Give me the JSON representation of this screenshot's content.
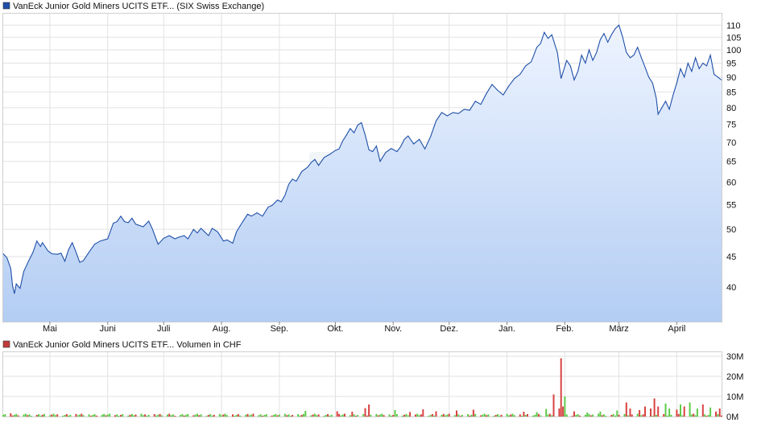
{
  "chart_data": [
    {
      "type": "area",
      "legend": {
        "label": "VanEck Junior Gold Miners UCITS ETF... (SIX Swiss Exchange)",
        "color": "#1f4fa8"
      },
      "line_color": "#1f4fa8",
      "fill_top": "#eef4ff",
      "fill_bottom": "#b3cdf3",
      "y_scale": "log",
      "ylim": [
        35,
        115
      ],
      "ytick_labels": [
        "40",
        "45",
        "50",
        "55",
        "60",
        "65",
        "70",
        "75",
        "80",
        "85",
        "90",
        "95",
        "100",
        "105",
        "110"
      ],
      "xlim": [
        "2023-04-06",
        "2024-04-25"
      ],
      "months": [
        {
          "date": "2023-05-01",
          "label": "Mai"
        },
        {
          "date": "2023-06-01",
          "label": "Juni"
        },
        {
          "date": "2023-07-01",
          "label": "Juli"
        },
        {
          "date": "2023-08-01",
          "label": "Aug."
        },
        {
          "date": "2023-09-01",
          "label": "Sep."
        },
        {
          "date": "2023-10-01",
          "label": "Okt."
        },
        {
          "date": "2023-11-01",
          "label": "Nov."
        },
        {
          "date": "2023-12-01",
          "label": "Dez."
        },
        {
          "date": "2024-01-01",
          "label": "Jan."
        },
        {
          "date": "2024-02-01",
          "label": "Feb."
        },
        {
          "date": "2024-03-01",
          "label": "März"
        },
        {
          "date": "2024-04-01",
          "label": "April"
        }
      ],
      "series": [
        {
          "points": [
            [
              "2023-04-06",
              45.5
            ],
            [
              "2023-04-08",
              44.8
            ],
            [
              "2023-04-10",
              43.0
            ],
            [
              "2023-04-11",
              40.2
            ],
            [
              "2023-04-12",
              39.0
            ],
            [
              "2023-04-13",
              40.5
            ],
            [
              "2023-04-15",
              39.8
            ],
            [
              "2023-04-17",
              42.5
            ],
            [
              "2023-04-20",
              44.5
            ],
            [
              "2023-04-22",
              45.8
            ],
            [
              "2023-04-24",
              47.8
            ],
            [
              "2023-04-26",
              46.8
            ],
            [
              "2023-04-27",
              47.5
            ],
            [
              "2023-04-30",
              46.0
            ],
            [
              "2023-05-02",
              45.5
            ],
            [
              "2023-05-05",
              45.4
            ],
            [
              "2023-05-07",
              45.6
            ],
            [
              "2023-05-09",
              44.2
            ],
            [
              "2023-05-11",
              46.2
            ],
            [
              "2023-05-13",
              47.5
            ],
            [
              "2023-05-15",
              45.8
            ],
            [
              "2023-05-17",
              44.0
            ],
            [
              "2023-05-19",
              44.3
            ],
            [
              "2023-05-22",
              45.8
            ],
            [
              "2023-05-25",
              47.2
            ],
            [
              "2023-05-28",
              47.8
            ],
            [
              "2023-06-01",
              48.2
            ],
            [
              "2023-06-04",
              51.2
            ],
            [
              "2023-06-06",
              51.5
            ],
            [
              "2023-06-08",
              52.6
            ],
            [
              "2023-06-10",
              51.5
            ],
            [
              "2023-06-12",
              51.3
            ],
            [
              "2023-06-14",
              52.2
            ],
            [
              "2023-06-16",
              51.0
            ],
            [
              "2023-06-20",
              50.5
            ],
            [
              "2023-06-23",
              51.6
            ],
            [
              "2023-06-25",
              50.0
            ],
            [
              "2023-06-28",
              47.2
            ],
            [
              "2023-07-01",
              48.3
            ],
            [
              "2023-07-04",
              48.8
            ],
            [
              "2023-07-07",
              48.2
            ],
            [
              "2023-07-09",
              48.5
            ],
            [
              "2023-07-12",
              48.8
            ],
            [
              "2023-07-14",
              48.2
            ],
            [
              "2023-07-17",
              50.0
            ],
            [
              "2023-07-19",
              49.3
            ],
            [
              "2023-07-21",
              50.2
            ],
            [
              "2023-07-25",
              48.8
            ],
            [
              "2023-07-27",
              50.2
            ],
            [
              "2023-07-30",
              49.5
            ],
            [
              "2023-08-02",
              47.8
            ],
            [
              "2023-08-04",
              48.0
            ],
            [
              "2023-08-07",
              47.4
            ],
            [
              "2023-08-09",
              49.5
            ],
            [
              "2023-08-12",
              51.3
            ],
            [
              "2023-08-15",
              53.0
            ],
            [
              "2023-08-17",
              52.6
            ],
            [
              "2023-08-20",
              53.3
            ],
            [
              "2023-08-23",
              52.6
            ],
            [
              "2023-08-26",
              54.5
            ],
            [
              "2023-08-28",
              54.8
            ],
            [
              "2023-08-31",
              56.0
            ],
            [
              "2023-09-02",
              55.6
            ],
            [
              "2023-09-04",
              57.0
            ],
            [
              "2023-09-06",
              59.5
            ],
            [
              "2023-09-08",
              60.7
            ],
            [
              "2023-09-10",
              60.2
            ],
            [
              "2023-09-13",
              62.5
            ],
            [
              "2023-09-16",
              63.5
            ],
            [
              "2023-09-18",
              64.7
            ],
            [
              "2023-09-20",
              65.5
            ],
            [
              "2023-09-22",
              64.0
            ],
            [
              "2023-09-25",
              66.0
            ],
            [
              "2023-09-28",
              66.8
            ],
            [
              "2023-10-01",
              67.8
            ],
            [
              "2023-10-03",
              68.2
            ],
            [
              "2023-10-05",
              70.4
            ],
            [
              "2023-10-07",
              72.0
            ],
            [
              "2023-10-09",
              73.8
            ],
            [
              "2023-10-11",
              72.6
            ],
            [
              "2023-10-13",
              74.8
            ],
            [
              "2023-10-15",
              75.5
            ],
            [
              "2023-10-17",
              72.0
            ],
            [
              "2023-10-19",
              68.0
            ],
            [
              "2023-10-21",
              67.5
            ],
            [
              "2023-10-23",
              69.0
            ],
            [
              "2023-10-25",
              65.0
            ],
            [
              "2023-10-28",
              67.3
            ],
            [
              "2023-10-31",
              68.3
            ],
            [
              "2023-11-03",
              67.5
            ],
            [
              "2023-11-05",
              68.8
            ],
            [
              "2023-11-07",
              70.8
            ],
            [
              "2023-11-09",
              71.7
            ],
            [
              "2023-11-12",
              69.5
            ],
            [
              "2023-11-15",
              70.8
            ],
            [
              "2023-11-18",
              68.2
            ],
            [
              "2023-11-21",
              71.5
            ],
            [
              "2023-11-24",
              76.0
            ],
            [
              "2023-11-27",
              78.5
            ],
            [
              "2023-11-30",
              77.5
            ],
            [
              "2023-12-03",
              78.5
            ],
            [
              "2023-12-06",
              78.2
            ],
            [
              "2023-12-09",
              79.5
            ],
            [
              "2023-12-12",
              79.2
            ],
            [
              "2023-12-15",
              82.0
            ],
            [
              "2023-12-18",
              81.0
            ],
            [
              "2023-12-21",
              84.5
            ],
            [
              "2023-12-24",
              87.5
            ],
            [
              "2023-12-27",
              85.5
            ],
            [
              "2023-12-30",
              84.0
            ],
            [
              "2024-01-02",
              87.0
            ],
            [
              "2024-01-05",
              89.5
            ],
            [
              "2024-01-08",
              91.0
            ],
            [
              "2024-01-11",
              94.0
            ],
            [
              "2024-01-14",
              95.5
            ],
            [
              "2024-01-17",
              101.0
            ],
            [
              "2024-01-19",
              102.5
            ],
            [
              "2024-01-21",
              107.0
            ],
            [
              "2024-01-23",
              104.5
            ],
            [
              "2024-01-25",
              106.0
            ],
            [
              "2024-01-28",
              99.0
            ],
            [
              "2024-01-30",
              89.5
            ],
            [
              "2024-02-02",
              96.0
            ],
            [
              "2024-02-04",
              94.0
            ],
            [
              "2024-02-06",
              89.0
            ],
            [
              "2024-02-08",
              92.0
            ],
            [
              "2024-02-10",
              98.0
            ],
            [
              "2024-02-12",
              95.0
            ],
            [
              "2024-02-14",
              100.0
            ],
            [
              "2024-02-16",
              96.0
            ],
            [
              "2024-02-18",
              99.0
            ],
            [
              "2024-02-20",
              104.0
            ],
            [
              "2024-02-22",
              106.5
            ],
            [
              "2024-02-24",
              103.0
            ],
            [
              "2024-02-26",
              106.0
            ],
            [
              "2024-02-28",
              108.5
            ],
            [
              "2024-03-01",
              110.0
            ],
            [
              "2024-03-03",
              105.0
            ],
            [
              "2024-03-05",
              99.0
            ],
            [
              "2024-03-07",
              97.0
            ],
            [
              "2024-03-09",
              98.0
            ],
            [
              "2024-03-11",
              101.0
            ],
            [
              "2024-03-13",
              97.0
            ],
            [
              "2024-03-15",
              93.5
            ],
            [
              "2024-03-17",
              90.0
            ],
            [
              "2024-03-19",
              88.0
            ],
            [
              "2024-03-21",
              83.0
            ],
            [
              "2024-03-22",
              78.0
            ],
            [
              "2024-03-24",
              80.0
            ],
            [
              "2024-03-26",
              82.0
            ],
            [
              "2024-03-28",
              79.5
            ],
            [
              "2024-03-30",
              84.0
            ],
            [
              "2024-04-01",
              88.0
            ],
            [
              "2024-04-03",
              93.0
            ],
            [
              "2024-04-05",
              90.0
            ],
            [
              "2024-04-07",
              95.0
            ],
            [
              "2024-04-09",
              92.0
            ],
            [
              "2024-04-11",
              97.0
            ],
            [
              "2024-04-13",
              93.0
            ],
            [
              "2024-04-15",
              95.0
            ],
            [
              "2024-04-17",
              94.0
            ],
            [
              "2024-04-19",
              98.0
            ],
            [
              "2024-04-21",
              91.0
            ],
            [
              "2024-04-23",
              90.0
            ],
            [
              "2024-04-25",
              89.0
            ]
          ]
        }
      ]
    },
    {
      "type": "bar",
      "legend": {
        "label": "VanEck Junior Gold Miners UCITS ETF... Volumen in CHF",
        "color": "#c23b3b"
      },
      "up_color": "#5ecb4a",
      "down_color": "#d84343",
      "ylim": [
        0,
        32
      ],
      "yunit": "M",
      "ytick_values": [
        0,
        10,
        20,
        30
      ],
      "ytick_labels": [
        "0M",
        "10M",
        "20M",
        "30M"
      ],
      "xlim": [
        "2023-04-06",
        "2024-04-25"
      ],
      "spikes": [
        {
          "date": "2023-04-10",
          "value": 1.6,
          "up": false
        },
        {
          "date": "2023-09-15",
          "value": 2.8,
          "up": true
        },
        {
          "date": "2023-10-02",
          "value": 2.6,
          "up": false
        },
        {
          "date": "2023-10-10",
          "value": 2.4,
          "up": false
        },
        {
          "date": "2023-10-17",
          "value": 4.2,
          "up": false
        },
        {
          "date": "2023-10-19",
          "value": 6.0,
          "up": false
        },
        {
          "date": "2023-11-02",
          "value": 3.2,
          "up": true
        },
        {
          "date": "2023-11-10",
          "value": 2.3,
          "up": false
        },
        {
          "date": "2023-11-17",
          "value": 3.6,
          "up": false
        },
        {
          "date": "2023-11-24",
          "value": 2.6,
          "up": false
        },
        {
          "date": "2023-12-05",
          "value": 3.0,
          "up": false
        },
        {
          "date": "2023-12-14",
          "value": 3.4,
          "up": false
        },
        {
          "date": "2024-01-10",
          "value": 2.4,
          "up": false
        },
        {
          "date": "2024-01-17",
          "value": 2.2,
          "up": true
        },
        {
          "date": "2024-01-22",
          "value": 3.8,
          "up": true
        },
        {
          "date": "2024-01-26",
          "value": 11.0,
          "up": false
        },
        {
          "date": "2024-01-29",
          "value": 4.0,
          "up": false
        },
        {
          "date": "2024-01-30",
          "value": 29.0,
          "up": false
        },
        {
          "date": "2024-01-31",
          "value": 5.0,
          "up": false
        },
        {
          "date": "2024-02-01",
          "value": 10.0,
          "up": true
        },
        {
          "date": "2024-02-06",
          "value": 2.6,
          "up": false
        },
        {
          "date": "2024-02-13",
          "value": 2.0,
          "up": true
        },
        {
          "date": "2024-02-20",
          "value": 2.5,
          "up": true
        },
        {
          "date": "2024-02-29",
          "value": 3.0,
          "up": true
        },
        {
          "date": "2024-03-05",
          "value": 7.0,
          "up": false
        },
        {
          "date": "2024-03-07",
          "value": 4.0,
          "up": false
        },
        {
          "date": "2024-03-12",
          "value": 3.2,
          "up": false
        },
        {
          "date": "2024-03-15",
          "value": 5.0,
          "up": false
        },
        {
          "date": "2024-03-18",
          "value": 4.0,
          "up": false
        },
        {
          "date": "2024-03-20",
          "value": 9.0,
          "up": false
        },
        {
          "date": "2024-03-22",
          "value": 5.0,
          "up": false
        },
        {
          "date": "2024-03-26",
          "value": 6.5,
          "up": true
        },
        {
          "date": "2024-03-28",
          "value": 4.0,
          "up": true
        },
        {
          "date": "2024-04-01",
          "value": 3.5,
          "up": false
        },
        {
          "date": "2024-04-03",
          "value": 6.0,
          "up": true
        },
        {
          "date": "2024-04-05",
          "value": 5.0,
          "up": false
        },
        {
          "date": "2024-04-08",
          "value": 7.0,
          "up": true
        },
        {
          "date": "2024-04-12",
          "value": 4.0,
          "up": true
        },
        {
          "date": "2024-04-15",
          "value": 6.0,
          "up": false
        },
        {
          "date": "2024-04-19",
          "value": 4.5,
          "up": true
        },
        {
          "date": "2024-04-22",
          "value": 2.5,
          "up": false
        },
        {
          "date": "2024-04-24",
          "value": 4.0,
          "up": false
        }
      ]
    }
  ]
}
